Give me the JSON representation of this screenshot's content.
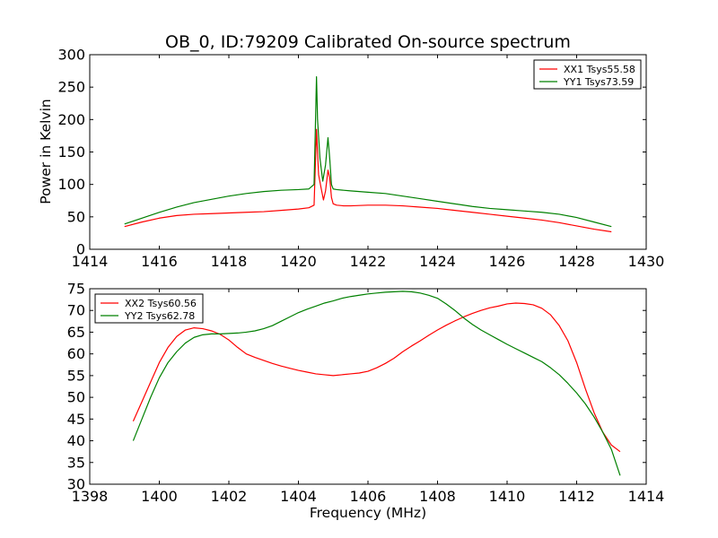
{
  "chart_data": [
    {
      "type": "line",
      "title": "OB_0, ID:79209 Calibrated On-source spectrum",
      "xlabel": "",
      "ylabel": "Power in Kelvin",
      "xlim": [
        1414,
        1430
      ],
      "ylim": [
        0,
        300
      ],
      "xticks": [
        "1414",
        "1416",
        "1418",
        "1420",
        "1422",
        "1424",
        "1426",
        "1428",
        "1430"
      ],
      "yticks": [
        "0",
        "50",
        "100",
        "150",
        "200",
        "250",
        "300"
      ],
      "grid": false,
      "legend": "top-right",
      "series": [
        {
          "name": "XX1 Tsys55.58",
          "color": "#ff0000",
          "x": [
            1415.0,
            1415.5,
            1416.0,
            1416.5,
            1417.0,
            1417.5,
            1418.0,
            1418.5,
            1419.0,
            1419.5,
            1420.0,
            1420.3,
            1420.45,
            1420.52,
            1420.58,
            1420.65,
            1420.72,
            1420.78,
            1420.85,
            1420.9,
            1420.95,
            1421.0,
            1421.1,
            1421.3,
            1421.5,
            1422.0,
            1422.5,
            1423.0,
            1423.5,
            1424.0,
            1424.5,
            1425.0,
            1425.5,
            1426.0,
            1426.5,
            1427.0,
            1427.5,
            1428.0,
            1428.5,
            1429.0
          ],
          "y": [
            35,
            42,
            48,
            52,
            54,
            55,
            56,
            57,
            58,
            60,
            62,
            64,
            68,
            185,
            115,
            95,
            76,
            90,
            122,
            110,
            80,
            70,
            68,
            67,
            67,
            68,
            68,
            67,
            65,
            63,
            60,
            57,
            54,
            51,
            48,
            45,
            41,
            36,
            31,
            27
          ]
        },
        {
          "name": "YY1 Tsys73.59",
          "color": "#008000",
          "x": [
            1415.0,
            1415.5,
            1416.0,
            1416.5,
            1417.0,
            1417.5,
            1418.0,
            1418.5,
            1419.0,
            1419.5,
            1420.0,
            1420.3,
            1420.45,
            1420.52,
            1420.55,
            1420.62,
            1420.7,
            1420.78,
            1420.85,
            1420.9,
            1420.95,
            1421.0,
            1421.1,
            1421.3,
            1421.5,
            1422.0,
            1422.5,
            1423.0,
            1423.5,
            1424.0,
            1424.5,
            1425.0,
            1425.5,
            1426.0,
            1426.5,
            1427.0,
            1427.5,
            1428.0,
            1428.5,
            1429.0
          ],
          "y": [
            39,
            48,
            57,
            65,
            72,
            77,
            82,
            86,
            89,
            91,
            92,
            93,
            100,
            266,
            200,
            140,
            105,
            130,
            172,
            140,
            100,
            93,
            92,
            91,
            90,
            88,
            86,
            82,
            78,
            74,
            70,
            66,
            63,
            61,
            59,
            57,
            54,
            49,
            42,
            35
          ]
        }
      ]
    },
    {
      "type": "line",
      "title": "",
      "xlabel": "Frequency (MHz)",
      "ylabel": "",
      "xlim": [
        1398,
        1414
      ],
      "ylim": [
        30,
        75
      ],
      "xticks": [
        "1398",
        "1400",
        "1402",
        "1404",
        "1406",
        "1408",
        "1410",
        "1412",
        "1414"
      ],
      "yticks": [
        "30",
        "35",
        "40",
        "45",
        "50",
        "55",
        "60",
        "65",
        "70",
        "75"
      ],
      "grid": false,
      "legend": "top-left",
      "series": [
        {
          "name": "XX2 Tsys60.56",
          "color": "#ff0000",
          "x": [
            1399.25,
            1399.5,
            1399.75,
            1400.0,
            1400.25,
            1400.5,
            1400.75,
            1401.0,
            1401.25,
            1401.5,
            1401.75,
            1402.0,
            1402.25,
            1402.5,
            1402.75,
            1403.0,
            1403.25,
            1403.5,
            1403.75,
            1404.0,
            1404.25,
            1404.5,
            1404.75,
            1405.0,
            1405.25,
            1405.5,
            1405.75,
            1406.0,
            1406.25,
            1406.5,
            1406.75,
            1407.0,
            1407.25,
            1407.5,
            1407.75,
            1408.0,
            1408.25,
            1408.5,
            1408.75,
            1409.0,
            1409.25,
            1409.5,
            1409.75,
            1410.0,
            1410.25,
            1410.5,
            1410.75,
            1411.0,
            1411.25,
            1411.5,
            1411.75,
            1412.0,
            1412.25,
            1412.5,
            1412.75,
            1413.0,
            1413.25
          ],
          "y": [
            44.5,
            49,
            53.5,
            58,
            61.5,
            64,
            65.5,
            66,
            65.8,
            65.3,
            64.5,
            63.2,
            61.5,
            60,
            59.2,
            58.5,
            57.8,
            57.2,
            56.7,
            56.2,
            55.8,
            55.4,
            55.2,
            55,
            55.2,
            55.4,
            55.6,
            56,
            56.8,
            57.8,
            59,
            60.5,
            61.8,
            63,
            64.3,
            65.5,
            66.6,
            67.6,
            68.5,
            69.3,
            70,
            70.6,
            71,
            71.5,
            71.7,
            71.6,
            71.3,
            70.5,
            69,
            66.5,
            63,
            58,
            52,
            46.5,
            42,
            39,
            37.5
          ]
        },
        {
          "name": "YY2 Tsys62.78",
          "color": "#008000",
          "x": [
            1399.25,
            1399.5,
            1399.75,
            1400.0,
            1400.25,
            1400.5,
            1400.75,
            1401.0,
            1401.25,
            1401.5,
            1401.75,
            1402.0,
            1402.25,
            1402.5,
            1402.75,
            1403.0,
            1403.25,
            1403.5,
            1403.75,
            1404.0,
            1404.25,
            1404.5,
            1404.75,
            1405.0,
            1405.25,
            1405.5,
            1405.75,
            1406.0,
            1406.25,
            1406.5,
            1406.75,
            1407.0,
            1407.25,
            1407.5,
            1407.75,
            1408.0,
            1408.25,
            1408.5,
            1408.75,
            1409.0,
            1409.25,
            1409.5,
            1409.75,
            1410.0,
            1410.25,
            1410.5,
            1410.75,
            1411.0,
            1411.25,
            1411.5,
            1411.75,
            1412.0,
            1412.25,
            1412.5,
            1412.75,
            1413.0,
            1413.25
          ],
          "y": [
            40,
            45,
            50,
            54.5,
            58,
            60.5,
            62.5,
            63.8,
            64.4,
            64.6,
            64.6,
            64.7,
            64.8,
            65,
            65.3,
            65.8,
            66.5,
            67.5,
            68.5,
            69.5,
            70.3,
            71,
            71.7,
            72.2,
            72.8,
            73.2,
            73.5,
            73.8,
            74,
            74.2,
            74.3,
            74.4,
            74.3,
            74,
            73.5,
            72.8,
            71.5,
            70,
            68.3,
            66.8,
            65.5,
            64.4,
            63.3,
            62.2,
            61.2,
            60.2,
            59.2,
            58.2,
            56.8,
            55.2,
            53.2,
            51,
            48.5,
            45.5,
            42,
            38,
            32
          ]
        }
      ]
    }
  ]
}
